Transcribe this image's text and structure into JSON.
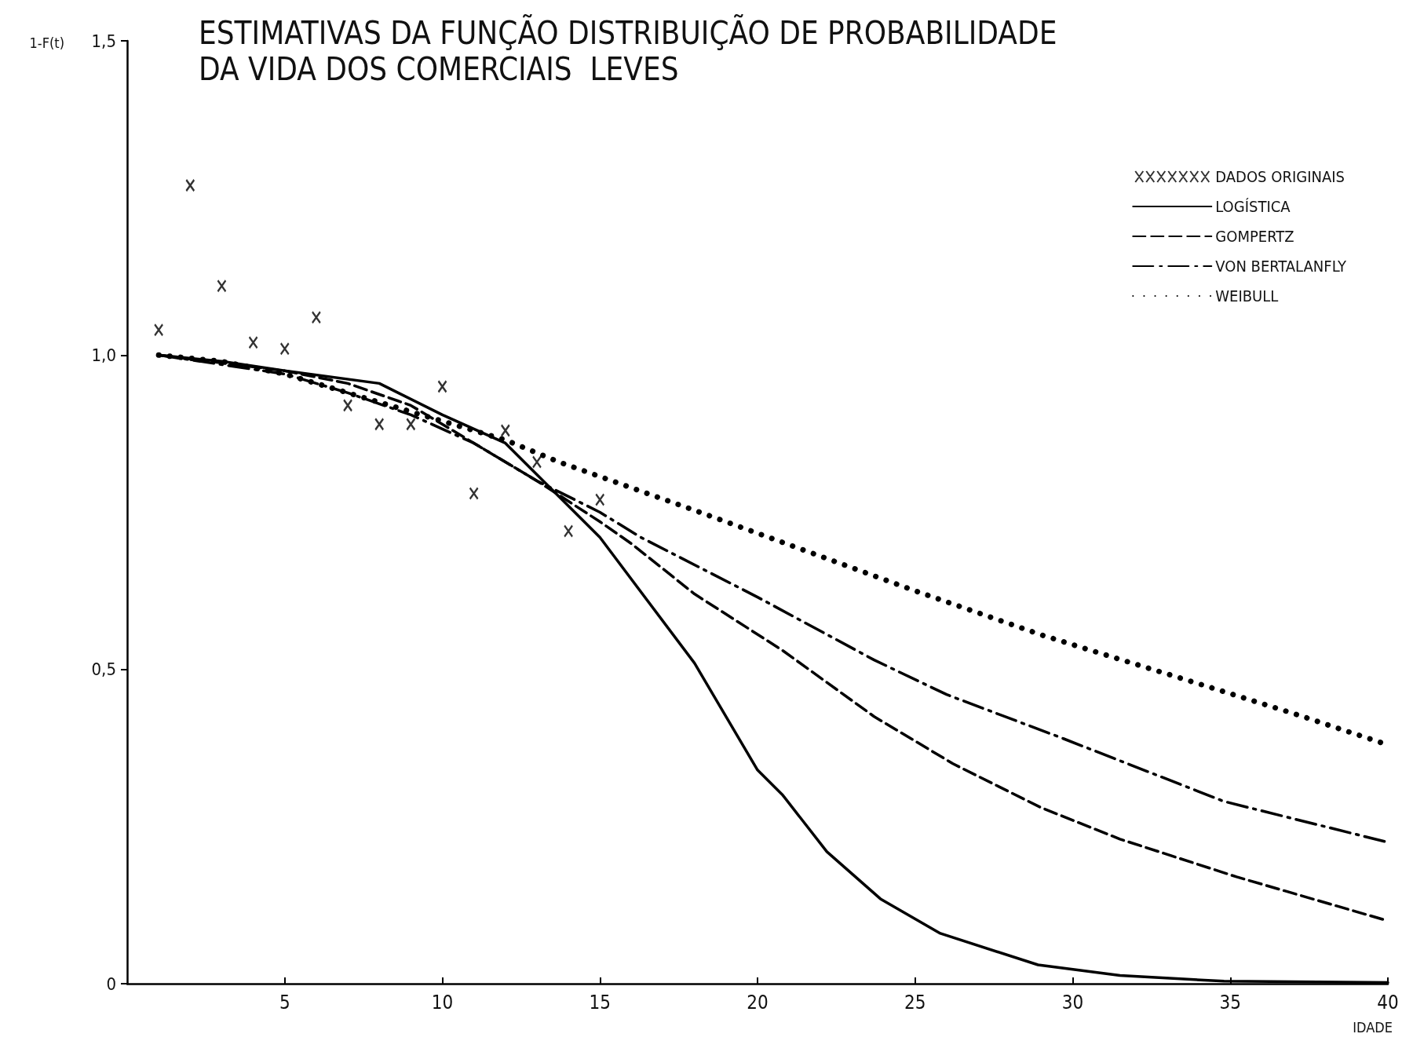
{
  "chart_data": {
    "type": "line",
    "title": "ESTIMATIVAS DA FUNÇÃO DISTRIBUIÇÃO DE PROBABILIDADE\nDA VIDA DOS COMERCIAIS  LEVES",
    "xlabel": "IDADE",
    "ylabel": "1-F(t)",
    "xlim": [
      0,
      40
    ],
    "xticks": [
      5,
      10,
      15,
      20,
      25,
      30,
      35,
      40
    ],
    "ylim": [
      0,
      1.5
    ],
    "yticks": [
      0,
      {
        "value": 0.5,
        "label": "0,5"
      },
      {
        "value": 1,
        "label": "1,0"
      },
      {
        "value": 1.5,
        "label": "1,5"
      }
    ],
    "grid": false,
    "legend": "top right",
    "series": [
      {
        "name": "DADOS ORIGINAIS",
        "type": "scatter",
        "marker": "cross",
        "color": "#000000",
        "x": [
          1,
          2,
          3,
          4,
          5,
          6,
          7,
          8,
          9,
          10,
          11,
          12,
          13,
          14,
          15
        ],
        "values": [
          1.04,
          1.27,
          1.11,
          1.02,
          1.01,
          1.06,
          0.92,
          0.89,
          0.89,
          0.95,
          0.78,
          0.88,
          0.83,
          0.72,
          0.77
        ]
      },
      {
        "name": "LOGÍSTICA",
        "type": "line",
        "line_style": "solid",
        "color": "#000000",
        "x": [
          1,
          3,
          5,
          8,
          10,
          12,
          13,
          15,
          18,
          20,
          20.8,
          22.2,
          23.9,
          25.8,
          28.9,
          31.5,
          34.8,
          40
        ],
        "values": [
          1.0,
          0.99,
          0.975,
          0.955,
          0.905,
          0.86,
          0.81,
          0.71,
          0.51,
          0.34,
          0.3,
          0.21,
          0.135,
          0.08,
          0.03,
          0.013,
          0.004,
          0.002
        ]
      },
      {
        "name": "GOMPERTZ",
        "type": "line",
        "line_style": "dashed",
        "color": "#000000",
        "x": [
          1,
          5,
          7,
          9,
          11,
          13,
          15,
          16,
          18,
          20.8,
          23.7,
          26.2,
          29,
          31.5,
          35.2,
          40
        ],
        "values": [
          1.0,
          0.975,
          0.955,
          0.92,
          0.86,
          0.8,
          0.735,
          0.7,
          0.62,
          0.53,
          0.425,
          0.35,
          0.28,
          0.23,
          0.17,
          0.1
        ]
      },
      {
        "name": "VON BERTALANFLY",
        "type": "line",
        "line_style": "dashdot",
        "color": "#000000",
        "x": [
          1,
          5,
          7,
          9,
          11,
          13,
          15,
          16.3,
          20,
          23.7,
          26,
          29.7,
          34.8,
          40
        ],
        "values": [
          1.0,
          0.97,
          0.94,
          0.905,
          0.86,
          0.8,
          0.75,
          0.71,
          0.615,
          0.515,
          0.46,
          0.39,
          0.29,
          0.225
        ]
      },
      {
        "name": "WEIBULL",
        "type": "line",
        "line_style": "dotted",
        "color": "#000000",
        "x": [
          1,
          3,
          5,
          7,
          9,
          11,
          12,
          13.7,
          17.9,
          22,
          25,
          29,
          30.6,
          33.5,
          37,
          40
        ],
        "values": [
          1.0,
          0.99,
          0.97,
          0.94,
          0.91,
          0.88,
          0.865,
          0.83,
          0.755,
          0.68,
          0.625,
          0.555,
          0.53,
          0.485,
          0.43,
          0.38
        ]
      }
    ]
  }
}
